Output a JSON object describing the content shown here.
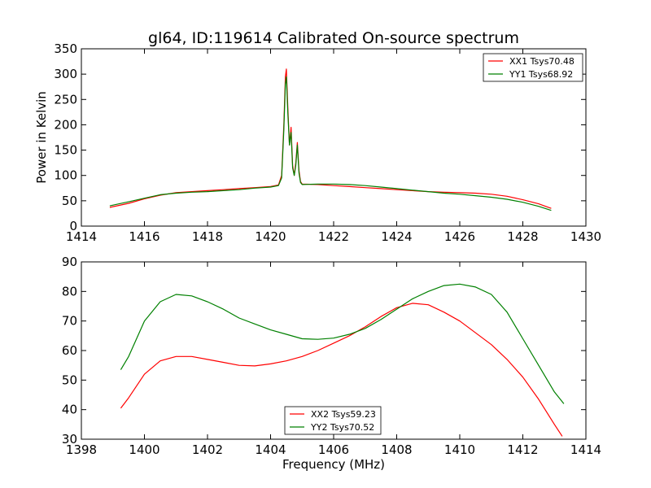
{
  "chart_data": [
    {
      "type": "line",
      "title": "gl64, ID:119614 Calibrated On-source spectrum",
      "xlabel": "",
      "ylabel": "Power in Kelvin",
      "xlim": [
        1414,
        1430
      ],
      "ylim": [
        0,
        350
      ],
      "xticks": [
        "1414",
        "1416",
        "1418",
        "1420",
        "1422",
        "1424",
        "1426",
        "1428",
        "1430"
      ],
      "yticks": [
        "0",
        "50",
        "100",
        "150",
        "200",
        "250",
        "300",
        "350"
      ],
      "legend_position": "top-right",
      "series": [
        {
          "name": "XX1 Tsys70.48",
          "color": "#ff0000",
          "points": [
            [
              1414.9,
              37
            ],
            [
              1415.5,
              45
            ],
            [
              1416,
              54
            ],
            [
              1416.5,
              61
            ],
            [
              1417,
              66
            ],
            [
              1417.5,
              68
            ],
            [
              1418,
              70
            ],
            [
              1418.5,
              72
            ],
            [
              1419,
              74
            ],
            [
              1419.5,
              76
            ],
            [
              1420,
              78
            ],
            [
              1420.25,
              81
            ],
            [
              1420.35,
              100
            ],
            [
              1420.42,
              200
            ],
            [
              1420.47,
              295
            ],
            [
              1420.5,
              310
            ],
            [
              1420.55,
              230
            ],
            [
              1420.6,
              160
            ],
            [
              1420.65,
              195
            ],
            [
              1420.7,
              120
            ],
            [
              1420.75,
              100
            ],
            [
              1420.8,
              125
            ],
            [
              1420.85,
              165
            ],
            [
              1420.9,
              110
            ],
            [
              1420.95,
              88
            ],
            [
              1421,
              83
            ],
            [
              1421.5,
              82
            ],
            [
              1422,
              80
            ],
            [
              1422.5,
              78
            ],
            [
              1423,
              76
            ],
            [
              1423.5,
              74
            ],
            [
              1424,
              72
            ],
            [
              1424.5,
              70
            ],
            [
              1425,
              68
            ],
            [
              1425.5,
              67
            ],
            [
              1426,
              66
            ],
            [
              1426.5,
              65
            ],
            [
              1427,
              63
            ],
            [
              1427.5,
              59
            ],
            [
              1428,
              52
            ],
            [
              1428.5,
              44
            ],
            [
              1428.9,
              35
            ]
          ]
        },
        {
          "name": "YY1 Tsys68.92",
          "color": "#008000",
          "points": [
            [
              1414.9,
              40
            ],
            [
              1415.5,
              48
            ],
            [
              1416,
              55
            ],
            [
              1416.5,
              62
            ],
            [
              1417,
              65
            ],
            [
              1417.5,
              67
            ],
            [
              1418,
              68
            ],
            [
              1418.5,
              70
            ],
            [
              1419,
              72
            ],
            [
              1419.5,
              75
            ],
            [
              1420,
              77
            ],
            [
              1420.25,
              80
            ],
            [
              1420.35,
              95
            ],
            [
              1420.42,
              190
            ],
            [
              1420.47,
              280
            ],
            [
              1420.5,
              295
            ],
            [
              1420.55,
              220
            ],
            [
              1420.6,
              160
            ],
            [
              1420.65,
              185
            ],
            [
              1420.7,
              115
            ],
            [
              1420.75,
              100
            ],
            [
              1420.8,
              120
            ],
            [
              1420.85,
              160
            ],
            [
              1420.9,
              105
            ],
            [
              1420.95,
              86
            ],
            [
              1421,
              82
            ],
            [
              1421.5,
              83
            ],
            [
              1422,
              83
            ],
            [
              1422.5,
              82
            ],
            [
              1423,
              80
            ],
            [
              1423.5,
              77
            ],
            [
              1424,
              74
            ],
            [
              1424.5,
              71
            ],
            [
              1425,
              68
            ],
            [
              1425.5,
              65
            ],
            [
              1426,
              63
            ],
            [
              1426.5,
              60
            ],
            [
              1427,
              57
            ],
            [
              1427.5,
              53
            ],
            [
              1428,
              47
            ],
            [
              1428.5,
              39
            ],
            [
              1428.9,
              31
            ]
          ]
        }
      ]
    },
    {
      "type": "line",
      "title": "",
      "xlabel": "Frequency (MHz)",
      "ylabel": "",
      "xlim": [
        1398,
        1414
      ],
      "ylim": [
        30,
        90
      ],
      "xticks": [
        "1398",
        "1400",
        "1402",
        "1404",
        "1406",
        "1408",
        "1410",
        "1412",
        "1414"
      ],
      "yticks": [
        "30",
        "40",
        "50",
        "60",
        "70",
        "80",
        "90"
      ],
      "legend_position": "lower-center",
      "series": [
        {
          "name": "XX2 Tsys59.23",
          "color": "#ff0000",
          "points": [
            [
              1399.25,
              40.5
            ],
            [
              1399.5,
              44
            ],
            [
              1400,
              52
            ],
            [
              1400.5,
              56.5
            ],
            [
              1401,
              58
            ],
            [
              1401.5,
              58
            ],
            [
              1402,
              57
            ],
            [
              1402.5,
              56
            ],
            [
              1403,
              55
            ],
            [
              1403.5,
              54.8
            ],
            [
              1404,
              55.5
            ],
            [
              1404.5,
              56.5
            ],
            [
              1405,
              58
            ],
            [
              1405.5,
              60
            ],
            [
              1406,
              62.5
            ],
            [
              1406.5,
              65
            ],
            [
              1407,
              68
            ],
            [
              1407.5,
              71.5
            ],
            [
              1408,
              74.5
            ],
            [
              1408.5,
              76
            ],
            [
              1409,
              75.5
            ],
            [
              1409.5,
              73
            ],
            [
              1410,
              70
            ],
            [
              1410.5,
              66
            ],
            [
              1411,
              62
            ],
            [
              1411.5,
              57
            ],
            [
              1412,
              51
            ],
            [
              1412.5,
              43.5
            ],
            [
              1413,
              35
            ],
            [
              1413.25,
              31
            ]
          ]
        },
        {
          "name": "YY2 Tsys70.52",
          "color": "#008000",
          "points": [
            [
              1399.25,
              53.5
            ],
            [
              1399.5,
              58
            ],
            [
              1400,
              70
            ],
            [
              1400.5,
              76.5
            ],
            [
              1401,
              79
            ],
            [
              1401.5,
              78.5
            ],
            [
              1402,
              76.5
            ],
            [
              1402.5,
              74
            ],
            [
              1403,
              71
            ],
            [
              1403.5,
              69
            ],
            [
              1404,
              67
            ],
            [
              1404.5,
              65.5
            ],
            [
              1405,
              64
            ],
            [
              1405.5,
              63.8
            ],
            [
              1406,
              64.2
            ],
            [
              1406.5,
              65.5
            ],
            [
              1407,
              67.5
            ],
            [
              1407.5,
              70.5
            ],
            [
              1408,
              74
            ],
            [
              1408.5,
              77.5
            ],
            [
              1409,
              80
            ],
            [
              1409.5,
              82
            ],
            [
              1410,
              82.5
            ],
            [
              1410.5,
              81.5
            ],
            [
              1411,
              79
            ],
            [
              1411.5,
              73
            ],
            [
              1412,
              64
            ],
            [
              1412.5,
              55
            ],
            [
              1413,
              46
            ],
            [
              1413.3,
              42
            ]
          ]
        }
      ]
    }
  ]
}
